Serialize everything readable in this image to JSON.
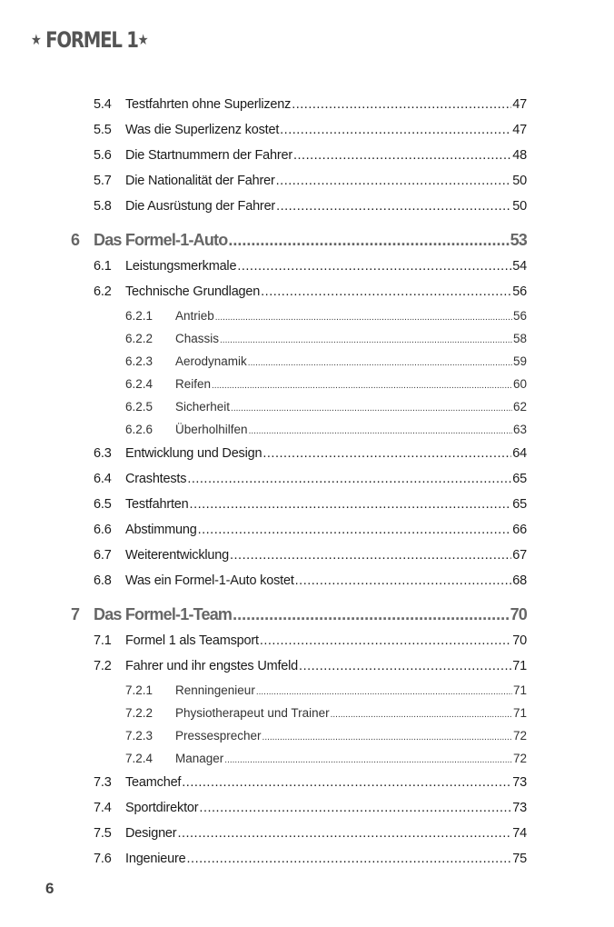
{
  "header": {
    "star_left": "★",
    "title": "FORMEL 1",
    "star_right": "★"
  },
  "toc": [
    {
      "level": 2,
      "num": "5.4",
      "title": "Testfahrten ohne Superlizenz",
      "page": "47"
    },
    {
      "level": 2,
      "num": "5.5",
      "title": "Was die Superlizenz kostet",
      "page": "47"
    },
    {
      "level": 2,
      "num": "5.6",
      "title": "Die Startnummern der Fahrer",
      "page": "48"
    },
    {
      "level": 2,
      "num": "5.7",
      "title": "Die Nationalität der Fahrer",
      "page": "50"
    },
    {
      "level": 2,
      "num": "5.8",
      "title": "Die Ausrüstung der Fahrer",
      "page": "50"
    },
    {
      "level": 1,
      "num": "6",
      "title": "Das Formel-1-Auto",
      "page": "53"
    },
    {
      "level": 2,
      "num": "6.1",
      "title": "Leistungsmerkmale",
      "page": "54"
    },
    {
      "level": 2,
      "num": "6.2",
      "title": "Technische Grundlagen",
      "page": "56"
    },
    {
      "level": 3,
      "num": "6.2.1",
      "title": "Antrieb",
      "page": "56"
    },
    {
      "level": 3,
      "num": "6.2.2",
      "title": "Chassis",
      "page": "58"
    },
    {
      "level": 3,
      "num": "6.2.3",
      "title": "Aerodynamik",
      "page": "59"
    },
    {
      "level": 3,
      "num": "6.2.4",
      "title": "Reifen",
      "page": "60"
    },
    {
      "level": 3,
      "num": "6.2.5",
      "title": "Sicherheit",
      "page": "62"
    },
    {
      "level": 3,
      "num": "6.2.6",
      "title": "Überholhilfen",
      "page": "63"
    },
    {
      "level": 2,
      "num": "6.3",
      "title": "Entwicklung und Design",
      "page": "64"
    },
    {
      "level": 2,
      "num": "6.4",
      "title": "Crashtests",
      "page": "65"
    },
    {
      "level": 2,
      "num": "6.5",
      "title": "Testfahrten",
      "page": "65"
    },
    {
      "level": 2,
      "num": "6.6",
      "title": "Abstimmung",
      "page": "66"
    },
    {
      "level": 2,
      "num": "6.7",
      "title": "Weiterentwicklung",
      "page": "67"
    },
    {
      "level": 2,
      "num": "6.8",
      "title": "Was ein Formel-1-Auto kostet",
      "page": "68"
    },
    {
      "level": 1,
      "num": "7",
      "title": "Das Formel-1-Team",
      "page": "70"
    },
    {
      "level": 2,
      "num": "7.1",
      "title": "Formel 1 als Teamsport",
      "page": "70"
    },
    {
      "level": 2,
      "num": "7.2",
      "title": "Fahrer und ihr engstes Umfeld",
      "page": "71"
    },
    {
      "level": 3,
      "num": "7.2.1",
      "title": "Renningenieur",
      "page": "71"
    },
    {
      "level": 3,
      "num": "7.2.2",
      "title": "Physiotherapeut und Trainer",
      "page": "71"
    },
    {
      "level": 3,
      "num": "7.2.3",
      "title": "Pressesprecher",
      "page": "72"
    },
    {
      "level": 3,
      "num": "7.2.4",
      "title": "Manager",
      "page": "72"
    },
    {
      "level": 2,
      "num": "7.3",
      "title": "Teamchef",
      "page": "73"
    },
    {
      "level": 2,
      "num": "7.4",
      "title": "Sportdirektor",
      "page": "73"
    },
    {
      "level": 2,
      "num": "7.5",
      "title": "Designer",
      "page": "74"
    },
    {
      "level": 2,
      "num": "7.6",
      "title": "Ingenieure",
      "page": "75"
    }
  ],
  "footer": {
    "page_number": "6"
  }
}
